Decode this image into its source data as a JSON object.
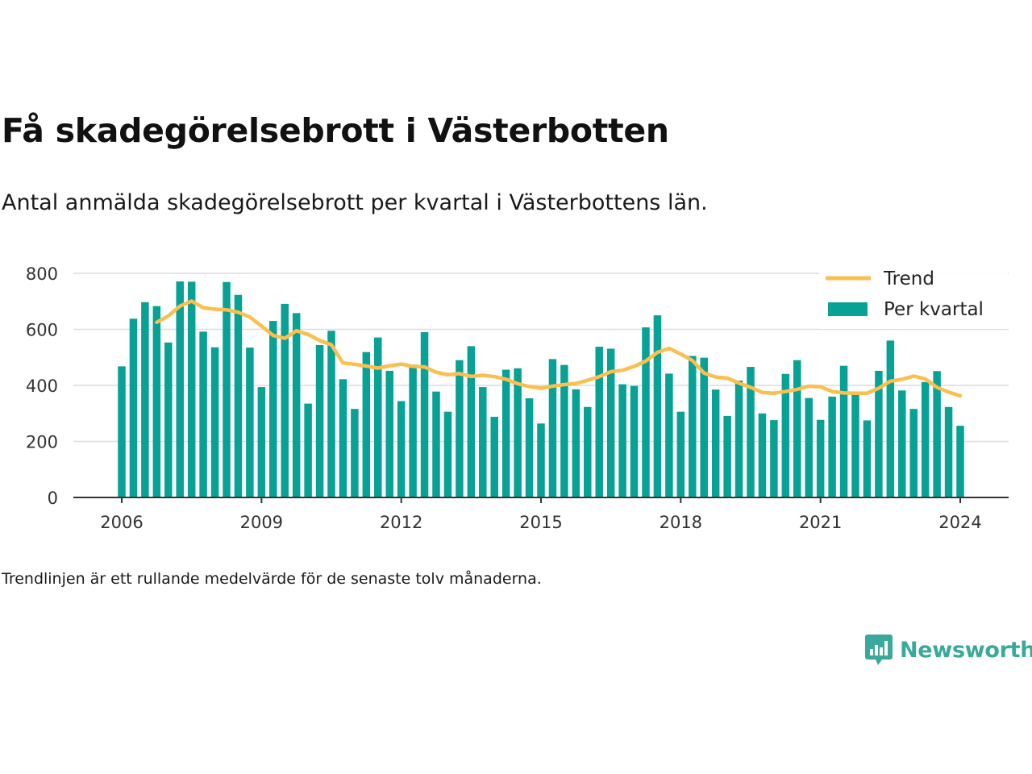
{
  "title": "Få skadegörelsebrott i Västerbotten",
  "subtitle": "Antal anmälda skadegörelsebrott per kvartal i Västerbottens län.",
  "footnote": "Trendlinjen är ett rullande medelvärde för de senaste tolv månaderna.",
  "brand": {
    "name": "Newsworthy",
    "icon": "newsworthy-logo-icon",
    "color": "#3aa89a"
  },
  "colors": {
    "bars": "#07a195",
    "trend": "#fbbf4f",
    "grid": "#dcdcdc",
    "axis": "#333333"
  },
  "chart_data": {
    "type": "bar",
    "x_start": 2006,
    "x_step": 0.25,
    "xlim": [
      2006,
      2024
    ],
    "xticks": [
      "2006",
      "2009",
      "2012",
      "2015",
      "2018",
      "2021",
      "2024"
    ],
    "ylim": [
      0,
      800
    ],
    "yticks": [
      "0",
      "200",
      "400",
      "600",
      "800"
    ],
    "grid": true,
    "legend_position": "top-right",
    "series": [
      {
        "name": "Per kvartal",
        "type": "bar",
        "values": [
          468,
          638,
          697,
          683,
          553,
          771,
          770,
          592,
          536,
          769,
          723,
          535,
          394,
          630,
          691,
          658,
          335,
          544,
          595,
          422,
          316,
          519,
          571,
          452,
          344,
          474,
          590,
          378,
          306,
          490,
          540,
          394,
          288,
          456,
          461,
          354,
          264,
          494,
          473,
          386,
          323,
          538,
          531,
          404,
          398,
          607,
          650,
          442,
          306,
          505,
          499,
          385,
          291,
          417,
          466,
          300,
          276,
          441,
          490,
          355,
          277,
          360,
          470,
          367,
          275,
          452,
          560,
          382,
          316,
          412,
          451,
          323,
          256
        ]
      },
      {
        "name": "Trend",
        "type": "line",
        "values": [
          null,
          null,
          null,
          625,
          648,
          683,
          701,
          677,
          672,
          670,
          661,
          644,
          612,
          578,
          568,
          595,
          582,
          560,
          545,
          480,
          475,
          469,
          462,
          470,
          476,
          468,
          466,
          447,
          438,
          442,
          432,
          436,
          431,
          422,
          406,
          396,
          390,
          397,
          403,
          407,
          418,
          431,
          449,
          454,
          468,
          487,
          518,
          532,
          512,
          489,
          444,
          430,
          426,
          408,
          393,
          375,
          372,
          378,
          386,
          397,
          395,
          378,
          373,
          372,
          372,
          390,
          415,
          422,
          433,
          423,
          393,
          376,
          363
        ]
      }
    ]
  }
}
